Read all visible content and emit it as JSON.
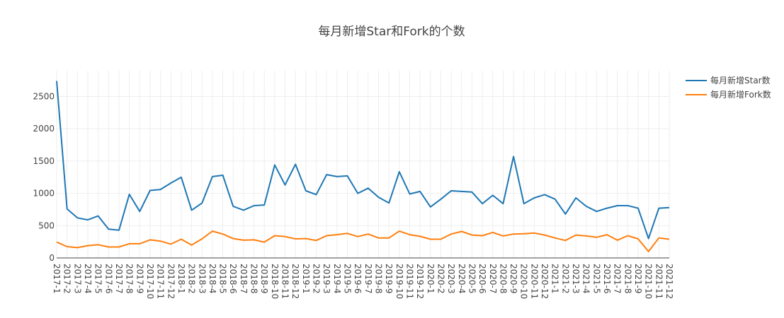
{
  "chart_data": {
    "type": "line",
    "title": "每月新增Star和Fork的个数",
    "categories": [
      "2017-1",
      "2017-2",
      "2017-3",
      "2017-4",
      "2017-5",
      "2017-6",
      "2017-7",
      "2017-8",
      "2017-9",
      "2017-10",
      "2017-11",
      "2017-12",
      "2018-1",
      "2018-2",
      "2018-3",
      "2018-4",
      "2018-5",
      "2018-6",
      "2018-7",
      "2018-8",
      "2018-9",
      "2018-10",
      "2018-11",
      "2018-12",
      "2019-1",
      "2019-2",
      "2019-3",
      "2019-4",
      "2019-5",
      "2019-6",
      "2019-7",
      "2019-8",
      "2019-9",
      "2019-10",
      "2019-11",
      "2019-12",
      "2020-1",
      "2020-2",
      "2020-3",
      "2020-4",
      "2020-5",
      "2020-6",
      "2020-7",
      "2020-8",
      "2020-9",
      "2020-10",
      "2020-11",
      "2020-12",
      "2021-1",
      "2021-2",
      "2021-3",
      "2021-4",
      "2021-5",
      "2021-6",
      "2021-7",
      "2021-8",
      "2021-9",
      "2021-10",
      "2021-11",
      "2021-12"
    ],
    "series": [
      {
        "name": "每月新增Star数",
        "color": "#1f77b4",
        "values": [
          2740,
          760,
          620,
          590,
          650,
          445,
          430,
          985,
          720,
          1045,
          1060,
          1160,
          1250,
          740,
          850,
          1260,
          1280,
          800,
          740,
          810,
          820,
          1440,
          1130,
          1450,
          1040,
          980,
          1290,
          1260,
          1270,
          1000,
          1080,
          940,
          850,
          1335,
          990,
          1030,
          790,
          910,
          1040,
          1030,
          1020,
          840,
          970,
          840,
          1570,
          840,
          930,
          980,
          910,
          680,
          930,
          800,
          720,
          770,
          810,
          810,
          770,
          300,
          770,
          780
        ]
      },
      {
        "name": "每月新增Fork数",
        "color": "#ff7f0e",
        "values": [
          245,
          175,
          160,
          190,
          205,
          170,
          170,
          220,
          220,
          280,
          260,
          215,
          290,
          200,
          295,
          415,
          370,
          300,
          275,
          280,
          245,
          345,
          330,
          295,
          300,
          270,
          345,
          360,
          380,
          330,
          370,
          310,
          310,
          415,
          360,
          335,
          290,
          290,
          370,
          410,
          355,
          345,
          395,
          340,
          370,
          375,
          385,
          355,
          310,
          270,
          355,
          340,
          320,
          360,
          275,
          345,
          295,
          100,
          310,
          290
        ]
      }
    ],
    "ylim": [
      0,
      2900
    ],
    "yticks": [
      0,
      500,
      1000,
      1500,
      2000,
      2500
    ],
    "grid": true,
    "legend": "top-right"
  }
}
